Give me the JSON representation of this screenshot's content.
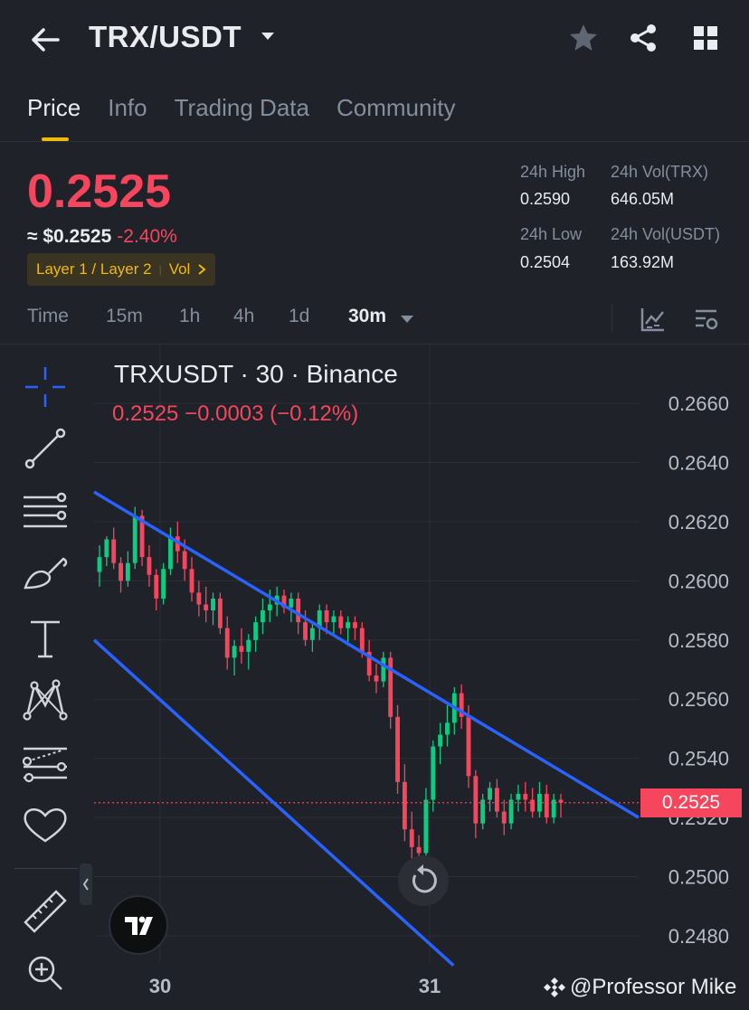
{
  "header": {
    "pair": "TRX/USDT",
    "icons": [
      "back-arrow-icon",
      "caret-down-icon",
      "star-icon",
      "share-icon",
      "grid-icon"
    ]
  },
  "tabs": [
    {
      "label": "Price",
      "active": true
    },
    {
      "label": "Info",
      "active": false
    },
    {
      "label": "Trading Data",
      "active": false
    },
    {
      "label": "Community",
      "active": false
    }
  ],
  "ticker": {
    "last_price": "0.2525",
    "usd_price": "≈ $0.2525",
    "change_pct": "-2.40%",
    "tag_category": "Layer 1 / Layer 2",
    "tag_vol": "Vol",
    "high_label": "24h High",
    "high_value": "0.2590",
    "low_label": "24h Low",
    "low_value": "0.2504",
    "vol_base_label": "24h Vol(TRX)",
    "vol_base_value": "646.05M",
    "vol_quote_label": "24h Vol(USDT)",
    "vol_quote_value": "163.92M"
  },
  "intervals": {
    "items": [
      "Time",
      "15m",
      "1h",
      "4h",
      "1d",
      "30m"
    ],
    "active": "30m"
  },
  "chart_data": {
    "type": "candlestick",
    "title": "TRXUSDT · 30 · Binance",
    "ohlc_line": "0.2525  −0.0003 (−0.12%)",
    "y_ticks": [
      "0.2660",
      "0.2640",
      "0.2620",
      "0.2600",
      "0.2580",
      "0.2560",
      "0.2540",
      "0.2520",
      "0.2500",
      "0.2480"
    ],
    "x_ticks": [
      "30",
      "31"
    ],
    "last_price_label": "0.2525",
    "ylim": [
      0.247,
      0.2672
    ],
    "colors": {
      "up": "#0ecb81",
      "down": "#f6465d",
      "channel": "#2962ff",
      "grid": "#2b2f36"
    },
    "candles": [
      [
        0.2603,
        0.2612,
        0.2598,
        0.2608
      ],
      [
        0.2608,
        0.2615,
        0.2605,
        0.2614
      ],
      [
        0.2614,
        0.2618,
        0.2604,
        0.2606
      ],
      [
        0.2606,
        0.2608,
        0.2596,
        0.26
      ],
      [
        0.26,
        0.261,
        0.2598,
        0.2606
      ],
      [
        0.2606,
        0.2625,
        0.2604,
        0.2622
      ],
      [
        0.2622,
        0.2624,
        0.2605,
        0.2608
      ],
      [
        0.2608,
        0.2612,
        0.2598,
        0.2602
      ],
      [
        0.2602,
        0.2604,
        0.259,
        0.2594
      ],
      [
        0.2594,
        0.2606,
        0.2592,
        0.2604
      ],
      [
        0.2604,
        0.2618,
        0.2602,
        0.2615
      ],
      [
        0.2615,
        0.262,
        0.2606,
        0.261
      ],
      [
        0.261,
        0.2614,
        0.26,
        0.2604
      ],
      [
        0.2604,
        0.2608,
        0.2593,
        0.2596
      ],
      [
        0.2596,
        0.26,
        0.2588,
        0.2592
      ],
      [
        0.2592,
        0.2598,
        0.2586,
        0.259
      ],
      [
        0.259,
        0.2596,
        0.2585,
        0.2594
      ],
      [
        0.2594,
        0.2596,
        0.2582,
        0.2584
      ],
      [
        0.2584,
        0.2588,
        0.257,
        0.2574
      ],
      [
        0.2574,
        0.258,
        0.2568,
        0.2578
      ],
      [
        0.2578,
        0.2584,
        0.2572,
        0.2576
      ],
      [
        0.2576,
        0.2582,
        0.257,
        0.258
      ],
      [
        0.258,
        0.2588,
        0.2576,
        0.2586
      ],
      [
        0.2586,
        0.2594,
        0.2582,
        0.259
      ],
      [
        0.259,
        0.2597,
        0.2586,
        0.2592
      ],
      [
        0.2592,
        0.2598,
        0.2588,
        0.2595
      ],
      [
        0.2595,
        0.2597,
        0.2589,
        0.2591
      ],
      [
        0.2591,
        0.2596,
        0.2586,
        0.2594
      ],
      [
        0.2594,
        0.2596,
        0.2582,
        0.2586
      ],
      [
        0.2586,
        0.259,
        0.2578,
        0.258
      ],
      [
        0.258,
        0.2586,
        0.2576,
        0.2584
      ],
      [
        0.2584,
        0.2592,
        0.258,
        0.259
      ],
      [
        0.259,
        0.2592,
        0.2582,
        0.2586
      ],
      [
        0.2586,
        0.259,
        0.2582,
        0.2588
      ],
      [
        0.2588,
        0.259,
        0.2582,
        0.2584
      ],
      [
        0.2584,
        0.2588,
        0.2578,
        0.2586
      ],
      [
        0.2586,
        0.2588,
        0.258,
        0.2584
      ],
      [
        0.2584,
        0.2586,
        0.2574,
        0.2576
      ],
      [
        0.2576,
        0.258,
        0.2566,
        0.2568
      ],
      [
        0.2568,
        0.2572,
        0.2562,
        0.2566
      ],
      [
        0.2566,
        0.2576,
        0.2564,
        0.2574
      ],
      [
        0.2574,
        0.2576,
        0.255,
        0.2554
      ],
      [
        0.2554,
        0.2558,
        0.2528,
        0.2532
      ],
      [
        0.2532,
        0.2538,
        0.2512,
        0.2516
      ],
      [
        0.2516,
        0.2522,
        0.2506,
        0.251
      ],
      [
        0.251,
        0.2514,
        0.2503,
        0.2508
      ],
      [
        0.2508,
        0.253,
        0.2505,
        0.2526
      ],
      [
        0.2526,
        0.2546,
        0.2522,
        0.2544
      ],
      [
        0.2544,
        0.2552,
        0.2538,
        0.2548
      ],
      [
        0.2548,
        0.2558,
        0.2544,
        0.2552
      ],
      [
        0.2552,
        0.2564,
        0.2548,
        0.2562
      ],
      [
        0.2562,
        0.2565,
        0.255,
        0.2554
      ],
      [
        0.2554,
        0.2558,
        0.253,
        0.2534
      ],
      [
        0.2534,
        0.2536,
        0.2513,
        0.2518
      ],
      [
        0.2518,
        0.2528,
        0.2516,
        0.2526
      ],
      [
        0.2526,
        0.2532,
        0.2522,
        0.253
      ],
      [
        0.253,
        0.2533,
        0.252,
        0.2522
      ],
      [
        0.2522,
        0.2526,
        0.2514,
        0.2518
      ],
      [
        0.2518,
        0.2528,
        0.2516,
        0.2526
      ],
      [
        0.2526,
        0.2531,
        0.2522,
        0.2528
      ],
      [
        0.2528,
        0.2532,
        0.2522,
        0.2526
      ],
      [
        0.2526,
        0.253,
        0.252,
        0.2522
      ],
      [
        0.2522,
        0.2532,
        0.252,
        0.2528
      ],
      [
        0.2528,
        0.2531,
        0.2518,
        0.252
      ],
      [
        0.252,
        0.2528,
        0.2518,
        0.2526
      ],
      [
        0.2526,
        0.2528,
        0.252,
        0.2525
      ]
    ],
    "channel_upper": [
      [
        0,
        0.263
      ],
      [
        1,
        0.252
      ]
    ],
    "channel_lower": [
      [
        0,
        0.258
      ],
      [
        0.66,
        0.247
      ]
    ]
  },
  "toolbar": {
    "tools": [
      "crosshair-icon",
      "trend-line-icon",
      "horizontal-lines-icon",
      "brush-icon",
      "text-icon",
      "pattern-icon",
      "fib-icon",
      "favorite-icon",
      "ruler-icon",
      "zoom-in-icon"
    ]
  },
  "watermark": "@Professor Mike"
}
